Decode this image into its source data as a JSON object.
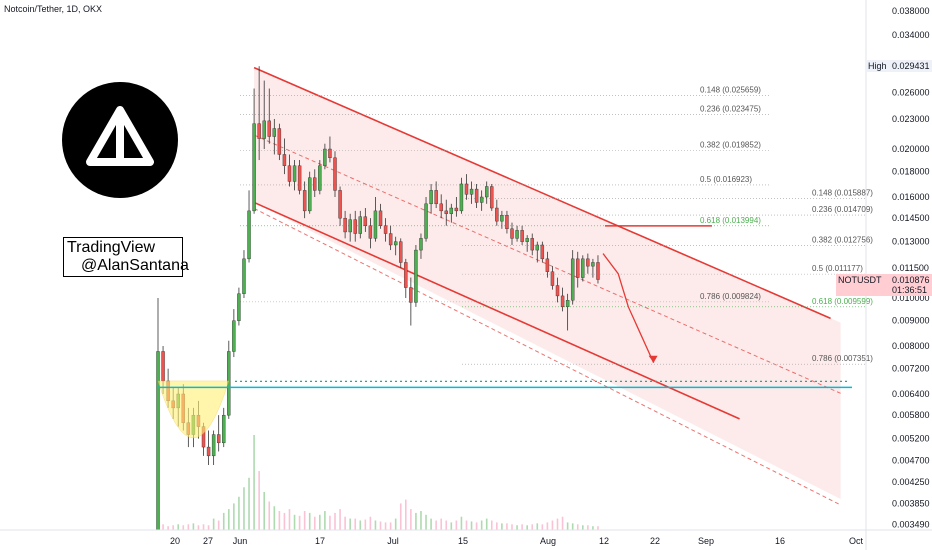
{
  "header": {
    "symbol_title": "Notcoin/Tether, 1D, OKX"
  },
  "watermark": {
    "line1": "TradingView",
    "line2": "@AlanSantana",
    "logo": "notcoin-logo-icon"
  },
  "price_axis": {
    "ticks": [
      "0.038000",
      "0.034000",
      "0.029431",
      "0.026000",
      "0.023000",
      "0.020000",
      "0.018000",
      "0.016000",
      "0.014500",
      "0.013000",
      "0.011500",
      "0.010000",
      "0.009000",
      "0.008000",
      "0.007200",
      "0.006400",
      "0.005800",
      "0.005200",
      "0.004700",
      "0.004250",
      "0.003850",
      "0.003490"
    ],
    "high_label": "High",
    "high_value": "0.029431",
    "current_symbol": "NOTUSDT",
    "current_price": "0.010876",
    "countdown": "01:36:51"
  },
  "time_axis": {
    "ticks": [
      "20",
      "27",
      "Jun",
      "17",
      "Jul",
      "15",
      "Aug",
      "12",
      "22",
      "Sep",
      "16",
      "Oct"
    ]
  },
  "fib_labels": {
    "upper": [
      "0.148 (0.025659)",
      "0.236 (0.023475)",
      "0.382 (0.019852)",
      "0.5 (0.016923)",
      "0.618 (0.013994)",
      "0.786 (0.009824)"
    ],
    "lower": [
      "0.148 (0.015887)",
      "0.236 (0.014709)",
      "0.382 (0.012756)",
      "0.5 (0.011177)",
      "0.618 (0.009599)",
      "0.786 (0.007351)"
    ]
  },
  "colors": {
    "up": "#26a69a",
    "down": "#ef5350",
    "channel": "#e53935",
    "support": "#00bcd4",
    "fib_green": "#4caf50",
    "cup": "#fff176",
    "text": "#131722"
  },
  "chart_data": {
    "type": "candlestick",
    "title": "Notcoin/Tether, 1D, OKX",
    "y_scale": "log",
    "ylim": [
      0.0034,
      0.04
    ],
    "xlim": [
      "2024-05-16",
      "2024-10-03"
    ],
    "support_level": 0.0066,
    "candles": [
      {
        "d": "2024-05-16",
        "o": 0.0034,
        "h": 0.01,
        "l": 0.0034,
        "c": 0.0078
      },
      {
        "d": "2024-05-17",
        "o": 0.0078,
        "h": 0.008,
        "l": 0.0064,
        "c": 0.0068
      },
      {
        "d": "2024-05-18",
        "o": 0.0068,
        "h": 0.0072,
        "l": 0.006,
        "c": 0.0062
      },
      {
        "d": "2024-05-19",
        "o": 0.0062,
        "h": 0.0066,
        "l": 0.0057,
        "c": 0.006
      },
      {
        "d": "2024-05-20",
        "o": 0.006,
        "h": 0.0066,
        "l": 0.0055,
        "c": 0.0064
      },
      {
        "d": "2024-05-21",
        "o": 0.0064,
        "h": 0.0067,
        "l": 0.0054,
        "c": 0.0056
      },
      {
        "d": "2024-05-22",
        "o": 0.0056,
        "h": 0.006,
        "l": 0.005,
        "c": 0.0053
      },
      {
        "d": "2024-05-23",
        "o": 0.0053,
        "h": 0.006,
        "l": 0.005,
        "c": 0.0058
      },
      {
        "d": "2024-05-24",
        "o": 0.0058,
        "h": 0.0062,
        "l": 0.0052,
        "c": 0.0055
      },
      {
        "d": "2024-05-25",
        "o": 0.0055,
        "h": 0.0056,
        "l": 0.0048,
        "c": 0.005
      },
      {
        "d": "2024-05-26",
        "o": 0.005,
        "h": 0.0054,
        "l": 0.0046,
        "c": 0.0048
      },
      {
        "d": "2024-05-27",
        "o": 0.0048,
        "h": 0.0054,
        "l": 0.0046,
        "c": 0.0053
      },
      {
        "d": "2024-05-28",
        "o": 0.0053,
        "h": 0.0058,
        "l": 0.0049,
        "c": 0.0051
      },
      {
        "d": "2024-05-29",
        "o": 0.0051,
        "h": 0.006,
        "l": 0.005,
        "c": 0.0058
      },
      {
        "d": "2024-05-30",
        "o": 0.0058,
        "h": 0.0082,
        "l": 0.0057,
        "c": 0.0078
      },
      {
        "d": "2024-05-31",
        "o": 0.0078,
        "h": 0.0095,
        "l": 0.0076,
        "c": 0.009
      },
      {
        "d": "2024-06-01",
        "o": 0.009,
        "h": 0.0105,
        "l": 0.0088,
        "c": 0.0102
      },
      {
        "d": "2024-06-02",
        "o": 0.0102,
        "h": 0.0125,
        "l": 0.01,
        "c": 0.012
      },
      {
        "d": "2024-06-03",
        "o": 0.012,
        "h": 0.0165,
        "l": 0.0118,
        "c": 0.015
      },
      {
        "d": "2024-06-04",
        "o": 0.015,
        "h": 0.0265,
        "l": 0.0148,
        "c": 0.0225
      },
      {
        "d": "2024-06-05",
        "o": 0.0225,
        "h": 0.0294,
        "l": 0.019,
        "c": 0.021
      },
      {
        "d": "2024-06-06",
        "o": 0.021,
        "h": 0.0275,
        "l": 0.02,
        "c": 0.0228
      },
      {
        "d": "2024-06-07",
        "o": 0.0228,
        "h": 0.0265,
        "l": 0.0205,
        "c": 0.0212
      },
      {
        "d": "2024-06-08",
        "o": 0.0212,
        "h": 0.023,
        "l": 0.0195,
        "c": 0.022
      },
      {
        "d": "2024-06-09",
        "o": 0.022,
        "h": 0.0225,
        "l": 0.019,
        "c": 0.0195
      },
      {
        "d": "2024-06-10",
        "o": 0.0195,
        "h": 0.021,
        "l": 0.0178,
        "c": 0.0185
      },
      {
        "d": "2024-06-11",
        "o": 0.0185,
        "h": 0.0195,
        "l": 0.0168,
        "c": 0.0172
      },
      {
        "d": "2024-06-12",
        "o": 0.0172,
        "h": 0.019,
        "l": 0.0165,
        "c": 0.0185
      },
      {
        "d": "2024-06-13",
        "o": 0.0185,
        "h": 0.019,
        "l": 0.0162,
        "c": 0.0165
      },
      {
        "d": "2024-06-14",
        "o": 0.0165,
        "h": 0.0172,
        "l": 0.0145,
        "c": 0.015
      },
      {
        "d": "2024-06-15",
        "o": 0.015,
        "h": 0.018,
        "l": 0.0148,
        "c": 0.0175
      },
      {
        "d": "2024-06-16",
        "o": 0.0175,
        "h": 0.0182,
        "l": 0.016,
        "c": 0.0165
      },
      {
        "d": "2024-06-17",
        "o": 0.0165,
        "h": 0.019,
        "l": 0.0162,
        "c": 0.0185
      },
      {
        "d": "2024-06-18",
        "o": 0.0185,
        "h": 0.0205,
        "l": 0.0182,
        "c": 0.02
      },
      {
        "d": "2024-06-19",
        "o": 0.02,
        "h": 0.0212,
        "l": 0.0188,
        "c": 0.0192
      },
      {
        "d": "2024-06-20",
        "o": 0.0192,
        "h": 0.0198,
        "l": 0.016,
        "c": 0.0165
      },
      {
        "d": "2024-06-21",
        "o": 0.0165,
        "h": 0.0168,
        "l": 0.014,
        "c": 0.0145
      },
      {
        "d": "2024-06-22",
        "o": 0.0145,
        "h": 0.015,
        "l": 0.0132,
        "c": 0.0136
      },
      {
        "d": "2024-06-23",
        "o": 0.0136,
        "h": 0.0148,
        "l": 0.013,
        "c": 0.0144
      },
      {
        "d": "2024-06-24",
        "o": 0.0144,
        "h": 0.015,
        "l": 0.013,
        "c": 0.0135
      },
      {
        "d": "2024-06-25",
        "o": 0.0135,
        "h": 0.015,
        "l": 0.0132,
        "c": 0.0146
      },
      {
        "d": "2024-06-26",
        "o": 0.0146,
        "h": 0.0152,
        "l": 0.0136,
        "c": 0.014
      },
      {
        "d": "2024-06-27",
        "o": 0.014,
        "h": 0.0145,
        "l": 0.0126,
        "c": 0.0132
      },
      {
        "d": "2024-06-28",
        "o": 0.0132,
        "h": 0.016,
        "l": 0.013,
        "c": 0.015
      },
      {
        "d": "2024-06-29",
        "o": 0.015,
        "h": 0.0155,
        "l": 0.0138,
        "c": 0.014
      },
      {
        "d": "2024-06-30",
        "o": 0.014,
        "h": 0.0145,
        "l": 0.013,
        "c": 0.0135
      },
      {
        "d": "2024-07-01",
        "o": 0.0135,
        "h": 0.014,
        "l": 0.0125,
        "c": 0.0128
      },
      {
        "d": "2024-07-02",
        "o": 0.0128,
        "h": 0.0133,
        "l": 0.0122,
        "c": 0.013
      },
      {
        "d": "2024-07-03",
        "o": 0.013,
        "h": 0.0132,
        "l": 0.0115,
        "c": 0.0118
      },
      {
        "d": "2024-07-04",
        "o": 0.0118,
        "h": 0.012,
        "l": 0.01,
        "c": 0.0105
      },
      {
        "d": "2024-07-05",
        "o": 0.0105,
        "h": 0.011,
        "l": 0.0088,
        "c": 0.0098
      },
      {
        "d": "2024-07-06",
        "o": 0.0098,
        "h": 0.0128,
        "l": 0.0096,
        "c": 0.0125
      },
      {
        "d": "2024-07-07",
        "o": 0.0125,
        "h": 0.0135,
        "l": 0.012,
        "c": 0.0132
      },
      {
        "d": "2024-07-08",
        "o": 0.0132,
        "h": 0.016,
        "l": 0.013,
        "c": 0.0155
      },
      {
        "d": "2024-07-09",
        "o": 0.0155,
        "h": 0.017,
        "l": 0.0148,
        "c": 0.0165
      },
      {
        "d": "2024-07-10",
        "o": 0.0165,
        "h": 0.0172,
        "l": 0.0152,
        "c": 0.0155
      },
      {
        "d": "2024-07-11",
        "o": 0.0155,
        "h": 0.0162,
        "l": 0.0145,
        "c": 0.015
      },
      {
        "d": "2024-07-12",
        "o": 0.015,
        "h": 0.0158,
        "l": 0.014,
        "c": 0.0148
      },
      {
        "d": "2024-07-13",
        "o": 0.0148,
        "h": 0.0155,
        "l": 0.0142,
        "c": 0.0152
      },
      {
        "d": "2024-07-14",
        "o": 0.0152,
        "h": 0.016,
        "l": 0.0146,
        "c": 0.015
      },
      {
        "d": "2024-07-15",
        "o": 0.015,
        "h": 0.0175,
        "l": 0.0148,
        "c": 0.017
      },
      {
        "d": "2024-07-16",
        "o": 0.017,
        "h": 0.0178,
        "l": 0.0158,
        "c": 0.0162
      },
      {
        "d": "2024-07-17",
        "o": 0.0162,
        "h": 0.0172,
        "l": 0.0155,
        "c": 0.0166
      },
      {
        "d": "2024-07-18",
        "o": 0.0166,
        "h": 0.017,
        "l": 0.0152,
        "c": 0.0156
      },
      {
        "d": "2024-07-19",
        "o": 0.0156,
        "h": 0.0165,
        "l": 0.015,
        "c": 0.016
      },
      {
        "d": "2024-07-20",
        "o": 0.016,
        "h": 0.0172,
        "l": 0.0155,
        "c": 0.0168
      },
      {
        "d": "2024-07-21",
        "o": 0.0168,
        "h": 0.017,
        "l": 0.015,
        "c": 0.0152
      },
      {
        "d": "2024-07-22",
        "o": 0.0152,
        "h": 0.0158,
        "l": 0.014,
        "c": 0.0143
      },
      {
        "d": "2024-07-23",
        "o": 0.0143,
        "h": 0.015,
        "l": 0.0138,
        "c": 0.0147
      },
      {
        "d": "2024-07-24",
        "o": 0.0147,
        "h": 0.015,
        "l": 0.0135,
        "c": 0.0138
      },
      {
        "d": "2024-07-25",
        "o": 0.0138,
        "h": 0.0142,
        "l": 0.0128,
        "c": 0.0132
      },
      {
        "d": "2024-07-26",
        "o": 0.0132,
        "h": 0.014,
        "l": 0.013,
        "c": 0.0137
      },
      {
        "d": "2024-07-27",
        "o": 0.0137,
        "h": 0.014,
        "l": 0.0128,
        "c": 0.013
      },
      {
        "d": "2024-07-28",
        "o": 0.013,
        "h": 0.0134,
        "l": 0.0124,
        "c": 0.0132
      },
      {
        "d": "2024-07-29",
        "o": 0.0132,
        "h": 0.0135,
        "l": 0.0122,
        "c": 0.0125
      },
      {
        "d": "2024-07-30",
        "o": 0.0125,
        "h": 0.013,
        "l": 0.0118,
        "c": 0.0128
      },
      {
        "d": "2024-07-31",
        "o": 0.0128,
        "h": 0.013,
        "l": 0.0118,
        "c": 0.012
      },
      {
        "d": "2024-08-01",
        "o": 0.012,
        "h": 0.0124,
        "l": 0.011,
        "c": 0.0113
      },
      {
        "d": "2024-08-02",
        "o": 0.0113,
        "h": 0.0116,
        "l": 0.0104,
        "c": 0.0106
      },
      {
        "d": "2024-08-03",
        "o": 0.0106,
        "h": 0.011,
        "l": 0.0098,
        "c": 0.0101
      },
      {
        "d": "2024-08-04",
        "o": 0.0101,
        "h": 0.0105,
        "l": 0.0094,
        "c": 0.0096
      },
      {
        "d": "2024-08-05",
        "o": 0.0096,
        "h": 0.0102,
        "l": 0.0086,
        "c": 0.0099
      },
      {
        "d": "2024-08-06",
        "o": 0.0099,
        "h": 0.0125,
        "l": 0.0097,
        "c": 0.012
      },
      {
        "d": "2024-08-07",
        "o": 0.012,
        "h": 0.0124,
        "l": 0.0105,
        "c": 0.011
      },
      {
        "d": "2024-08-08",
        "o": 0.011,
        "h": 0.0122,
        "l": 0.0108,
        "c": 0.012
      },
      {
        "d": "2024-08-09",
        "o": 0.012,
        "h": 0.0123,
        "l": 0.0112,
        "c": 0.0116
      },
      {
        "d": "2024-08-10",
        "o": 0.0116,
        "h": 0.012,
        "l": 0.011,
        "c": 0.0118
      },
      {
        "d": "2024-08-11",
        "o": 0.0118,
        "h": 0.0122,
        "l": 0.0107,
        "c": 0.0109
      }
    ],
    "volume": [
      0.1,
      0.06,
      0.04,
      0.05,
      0.06,
      0.05,
      0.06,
      0.07,
      0.05,
      0.06,
      0.05,
      0.12,
      0.1,
      0.18,
      0.22,
      0.28,
      0.35,
      0.45,
      0.55,
      1.0,
      0.62,
      0.4,
      0.3,
      0.25,
      0.2,
      0.18,
      0.22,
      0.16,
      0.15,
      0.2,
      0.18,
      0.14,
      0.16,
      0.2,
      0.15,
      0.18,
      0.22,
      0.14,
      0.12,
      0.12,
      0.1,
      0.11,
      0.14,
      0.1,
      0.09,
      0.08,
      0.08,
      0.12,
      0.28,
      0.32,
      0.22,
      0.18,
      0.2,
      0.16,
      0.12,
      0.1,
      0.12,
      0.1,
      0.08,
      0.1,
      0.14,
      0.1,
      0.09,
      0.08,
      0.1,
      0.12,
      0.1,
      0.08,
      0.07,
      0.07,
      0.06,
      0.05,
      0.06,
      0.05,
      0.06,
      0.07,
      0.06,
      0.08,
      0.1,
      0.12,
      0.14,
      0.08,
      0.07,
      0.06,
      0.05,
      0.05,
      0.04,
      0.04
    ],
    "channel": {
      "upper_start": {
        "d": "2024-06-04",
        "v": 0.0292
      },
      "upper_end": {
        "d": "2024-09-26",
        "v": 0.0091
      },
      "lower_start": {
        "d": "2024-06-04",
        "v": 0.0156
      },
      "lower_end": {
        "d": "2024-09-08",
        "v": 0.0057
      }
    },
    "projection": [
      {
        "d": "2024-08-12",
        "v": 0.0123
      },
      {
        "d": "2024-08-15",
        "v": 0.0112
      },
      {
        "d": "2024-08-17",
        "v": 0.0096
      },
      {
        "d": "2024-08-22",
        "v": 0.0074
      }
    ]
  }
}
